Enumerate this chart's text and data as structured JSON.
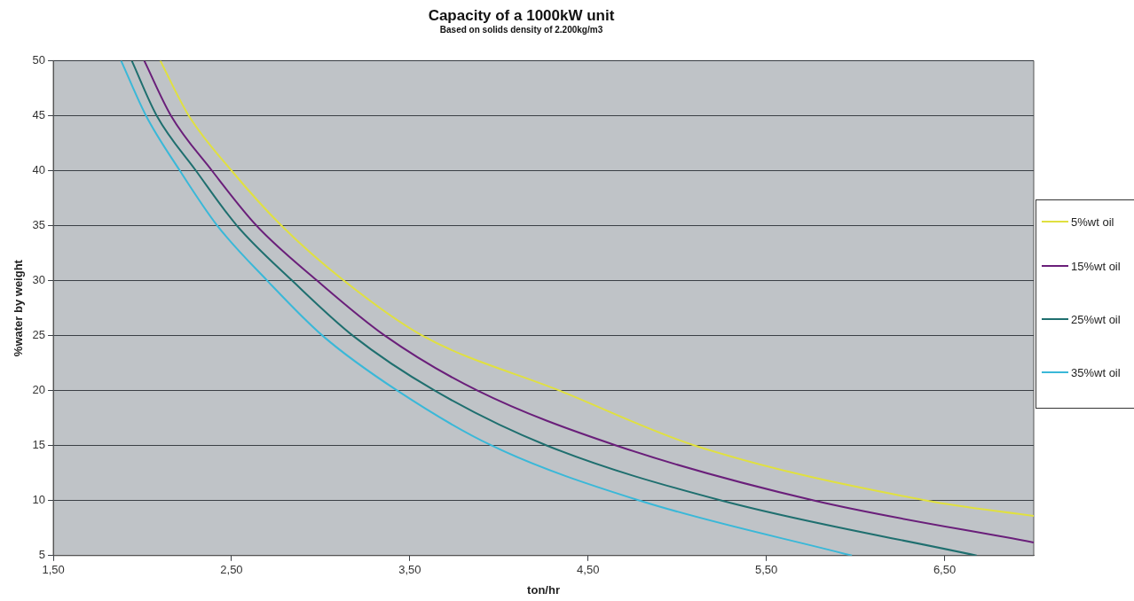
{
  "chart_data": {
    "type": "line",
    "title": "Capacity of a 1000kW unit",
    "subtitle": "Based on solids density of 2.200kg/m3",
    "xlabel": "ton/hr",
    "ylabel": "%water by weight",
    "xlim": [
      1.5,
      7.0
    ],
    "xticks": [
      {
        "value": 1.5,
        "label": "1,50"
      },
      {
        "value": 2.5,
        "label": "2,50"
      },
      {
        "value": 3.5,
        "label": "3,50"
      },
      {
        "value": 4.5,
        "label": "4,50"
      },
      {
        "value": 5.5,
        "label": "5,50"
      },
      {
        "value": 6.5,
        "label": "6,50"
      }
    ],
    "ylim": [
      5,
      50
    ],
    "yticks": [
      5,
      10,
      15,
      20,
      25,
      30,
      35,
      40,
      45,
      50
    ],
    "grid": "y",
    "legend": "right",
    "marker": "none",
    "line_style": "solid",
    "series": [
      {
        "name": "5%wt oil",
        "color": "#e0e040",
        "x": [
          2.1,
          2.26,
          2.5,
          2.78,
          3.13,
          3.57,
          4.34,
          5.1,
          6.4,
          7.0
        ],
        "values": [
          50,
          45,
          40,
          35,
          30,
          25,
          20,
          15,
          10,
          8.6
        ]
      },
      {
        "name": "15%wt oil",
        "color": "#6a1f7a",
        "x": [
          2.01,
          2.16,
          2.39,
          2.64,
          2.98,
          3.36,
          3.88,
          4.66,
          5.77,
          7.0
        ],
        "values": [
          50,
          45,
          40,
          35,
          30,
          25,
          20,
          15,
          10,
          6.2
        ]
      },
      {
        "name": "25%wt oil",
        "color": "#1f6f6f",
        "x": [
          1.94,
          2.08,
          2.3,
          2.53,
          2.84,
          3.18,
          3.64,
          4.27,
          5.25,
          6.68
        ],
        "values": [
          50,
          45,
          40,
          35,
          30,
          25,
          20,
          15,
          10,
          5
        ]
      },
      {
        "name": "35%wt oil",
        "color": "#3ab8d8",
        "x": [
          1.88,
          2.02,
          2.21,
          2.42,
          2.7,
          3.01,
          3.43,
          3.96,
          4.79,
          5.98
        ],
        "values": [
          50,
          45,
          40,
          35,
          30,
          25,
          20,
          15,
          10,
          5
        ]
      }
    ]
  }
}
